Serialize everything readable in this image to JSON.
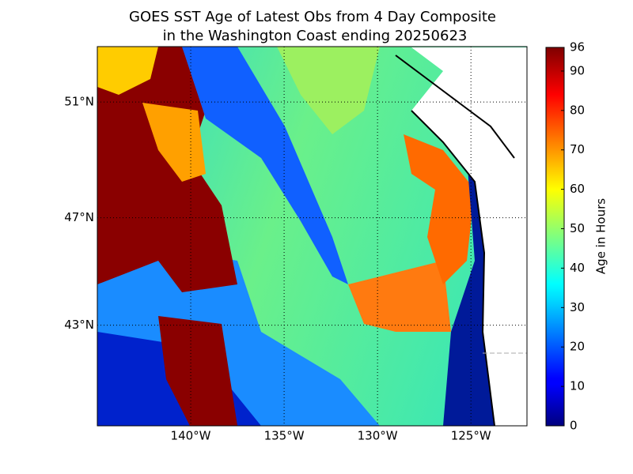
{
  "map": {
    "title": [
      "GOES SST Age of Latest Obs from 4 Day Composite",
      "in the Washington Coast ending 20250623"
    ],
    "lonlim": [
      -145,
      -122
    ],
    "latlim": [
      39,
      52.8
    ],
    "lat_lines": [
      {
        "value": 51,
        "label": "51°N"
      },
      {
        "value": 47,
        "label": "47°N"
      },
      {
        "value": 43,
        "label": "43°N"
      }
    ],
    "lon_lines": [
      {
        "value": -140,
        "label": "140°W"
      },
      {
        "value": -135,
        "label": "135°W"
      },
      {
        "value": -130,
        "label": "130°W"
      },
      {
        "value": -125,
        "label": "125°W"
      }
    ],
    "colorbar": {
      "label": "Age in Hours",
      "lim": [
        0,
        96
      ],
      "ticks": [
        0,
        10,
        20,
        30,
        40,
        50,
        60,
        70,
        80,
        90,
        96
      ],
      "colormap": "jet"
    }
  }
}
